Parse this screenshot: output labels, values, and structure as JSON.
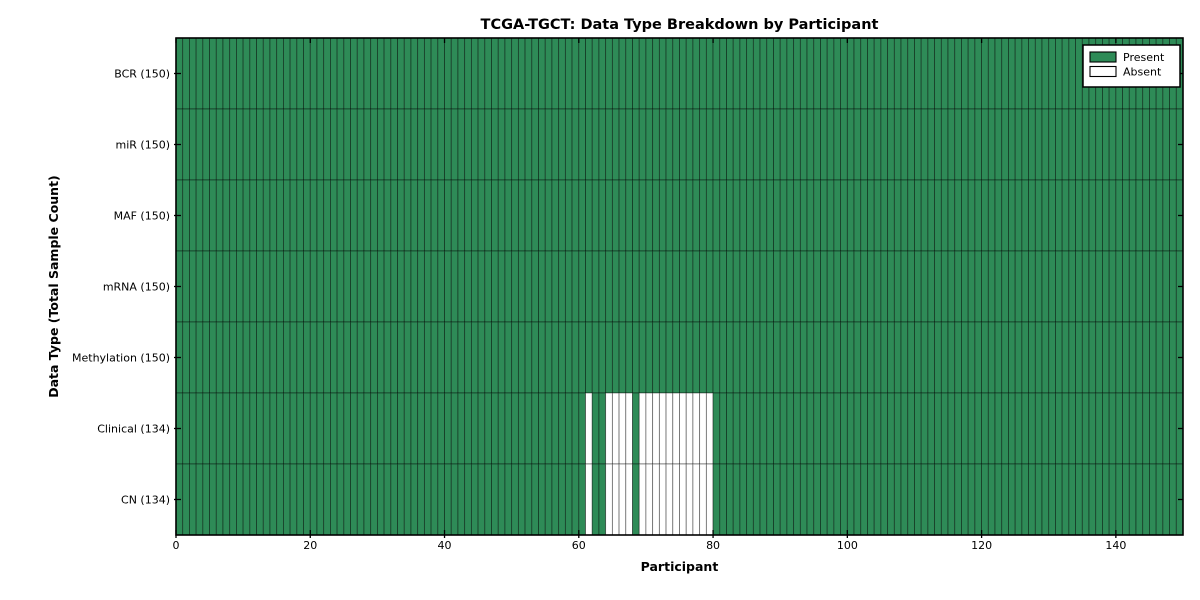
{
  "chart_data": {
    "type": "heatmap",
    "title": "TCGA-TGCT: Data Type Breakdown by Participant",
    "xlabel": "Participant",
    "ylabel": "Data Type (Total Sample Count)",
    "xlim": [
      0,
      150
    ],
    "x_ticks": [
      0,
      20,
      40,
      60,
      80,
      100,
      120,
      140
    ],
    "n_participants": 150,
    "categories": [
      "BCR (150)",
      "miR (150)",
      "MAF (150)",
      "mRNA (150)",
      "Methylation (150)",
      "Clinical (134)",
      "CN (134)"
    ],
    "rows": [
      {
        "label": "BCR (150)",
        "data_type": "BCR",
        "total_samples": 150,
        "absent_participants": []
      },
      {
        "label": "miR (150)",
        "data_type": "miR",
        "total_samples": 150,
        "absent_participants": []
      },
      {
        "label": "MAF (150)",
        "data_type": "MAF",
        "total_samples": 150,
        "absent_participants": []
      },
      {
        "label": "mRNA (150)",
        "data_type": "mRNA",
        "total_samples": 150,
        "absent_participants": []
      },
      {
        "label": "Methylation (150)",
        "data_type": "Methylation",
        "total_samples": 150,
        "absent_participants": []
      },
      {
        "label": "Clinical (134)",
        "data_type": "Clinical",
        "total_samples": 134,
        "absent_participants": [
          61,
          64,
          65,
          66,
          67,
          69,
          70,
          71,
          72,
          73,
          74,
          75,
          76,
          77,
          78,
          79
        ]
      },
      {
        "label": "CN (134)",
        "data_type": "CN",
        "total_samples": 134,
        "absent_participants": [
          61,
          64,
          65,
          66,
          67,
          69,
          70,
          71,
          72,
          73,
          74,
          75,
          76,
          77,
          78,
          79
        ]
      }
    ],
    "legend": {
      "position": "upper right",
      "entries": [
        {
          "label": "Present",
          "color": "#2e8b57"
        },
        {
          "label": "Absent",
          "color": "#ffffff"
        }
      ]
    },
    "colors": {
      "present": "#2e8b57",
      "absent": "#ffffff",
      "cell_edge": "#000000",
      "frame": "#000000",
      "background": "#ffffff"
    },
    "grid": false
  }
}
